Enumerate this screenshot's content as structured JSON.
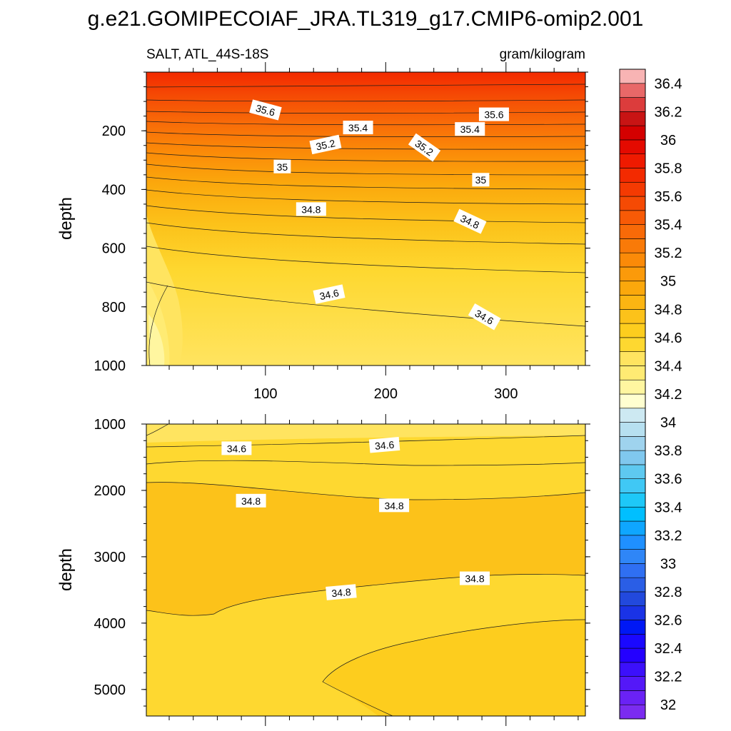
{
  "figure": {
    "title": "g.e21.GOMIPECOIAF_JRA.TL319_g17.CMIP6-omip2.001",
    "left_label": "SALT, ATL_44S-18S",
    "right_label": "gram/kilogram"
  },
  "colors": {
    "contour_line": "#1a1a1a",
    "frame": "#000000"
  },
  "chart_data": [
    {
      "type": "heatmap",
      "panel": "upper",
      "ylabel": "depth",
      "xlim": [
        1,
        366
      ],
      "ylim": [
        1000,
        0
      ],
      "x_ticks": [
        100,
        200,
        300
      ],
      "y_ticks": [
        200,
        400,
        600,
        800,
        1000
      ],
      "contour_labels": [
        {
          "text": "35.6",
          "x": 100,
          "y": 130,
          "angle": 15
        },
        {
          "text": "35.6",
          "x": 290,
          "y": 145,
          "angle": 0
        },
        {
          "text": "35.4",
          "x": 177,
          "y": 190,
          "angle": 0
        },
        {
          "text": "35.4",
          "x": 270,
          "y": 195,
          "angle": 0
        },
        {
          "text": "35.2",
          "x": 150,
          "y": 248,
          "angle": -12
        },
        {
          "text": "35.2",
          "x": 232,
          "y": 258,
          "angle": 35
        },
        {
          "text": "35",
          "x": 114,
          "y": 323,
          "angle": 0
        },
        {
          "text": "35",
          "x": 279,
          "y": 368,
          "angle": 0
        },
        {
          "text": "34.8",
          "x": 138,
          "y": 468,
          "angle": 0
        },
        {
          "text": "34.8",
          "x": 270,
          "y": 510,
          "angle": 25
        },
        {
          "text": "34.6",
          "x": 153,
          "y": 758,
          "angle": -12
        },
        {
          "text": "34.6",
          "x": 282,
          "y": 835,
          "angle": 30
        }
      ]
    },
    {
      "type": "heatmap",
      "panel": "lower",
      "ylabel": "depth",
      "xlim": [
        1,
        366
      ],
      "ylim": [
        5400,
        1000
      ],
      "x_ticks": [
        100,
        200,
        300
      ],
      "y_ticks": [
        1000,
        2000,
        3000,
        4000,
        5000
      ],
      "contour_labels": [
        {
          "text": "34.6",
          "x": 76,
          "y": 1370,
          "angle": 0
        },
        {
          "text": "34.6",
          "x": 199,
          "y": 1320,
          "angle": -5
        },
        {
          "text": "34.8",
          "x": 88,
          "y": 2160,
          "angle": 0
        },
        {
          "text": "34.8",
          "x": 207,
          "y": 2230,
          "angle": 0
        },
        {
          "text": "34.8",
          "x": 163,
          "y": 3540,
          "angle": -5
        },
        {
          "text": "34.8",
          "x": 274,
          "y": 3330,
          "angle": 0
        }
      ]
    },
    {
      "type": "colorbar",
      "levels": [
        32,
        32.1,
        32.2,
        32.3,
        32.4,
        32.5,
        32.6,
        32.7,
        32.8,
        32.9,
        33,
        33.1,
        33.2,
        33.3,
        33.4,
        33.5,
        33.6,
        33.7,
        33.8,
        33.9,
        34,
        34.1,
        34.2,
        34.3,
        34.4,
        34.5,
        34.6,
        34.7,
        34.8,
        34.9,
        35,
        35.1,
        35.2,
        35.3,
        35.4,
        35.5,
        35.6,
        35.7,
        35.8,
        35.9,
        36,
        36.1,
        36.2,
        36.3,
        36.4,
        36.5
      ],
      "tick_labels": [
        "32",
        "32.2",
        "32.4",
        "32.6",
        "32.8",
        "33",
        "33.2",
        "33.4",
        "33.6",
        "33.8",
        "34",
        "34.2",
        "34.4",
        "34.6",
        "34.8",
        "35",
        "35.2",
        "35.4",
        "35.6",
        "35.8",
        "36",
        "36.2",
        "36.4"
      ],
      "colors": [
        "#7b2cf0",
        "#6a22f5",
        "#5418f8",
        "#3c10fb",
        "#2400ff",
        "#1a08ff",
        "#0018f5",
        "#1a33e6",
        "#2249dd",
        "#2a5ee6",
        "#2f6ff2",
        "#2f86f7",
        "#1f90ff",
        "#0fa6ff",
        "#00bfff",
        "#1ec8f8",
        "#40c8f5",
        "#5ec9f0",
        "#80c8ee",
        "#9fd3ee",
        "#b7e0f0",
        "#cde9f2",
        "#ffffd0",
        "#fff6a0",
        "#ffeb73",
        "#ffe460",
        "#fed830",
        "#fdcd1e",
        "#fcc21a",
        "#fcb512",
        "#fba80c",
        "#fb9a0a",
        "#fb8a08",
        "#f97a08",
        "#f86a08",
        "#f75a06",
        "#f54a04",
        "#f43a02",
        "#f32a00",
        "#ef1a00",
        "#e40a00",
        "#d40000",
        "#c81414",
        "#dc3c3c",
        "#e86868",
        "#f8b4b4"
      ]
    }
  ]
}
